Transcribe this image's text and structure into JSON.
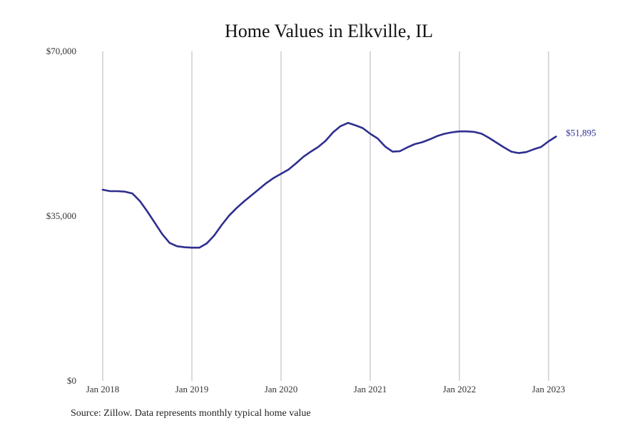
{
  "chart_data": {
    "type": "line",
    "title": "Home Values in Elkville, IL",
    "xlabel": "",
    "ylabel": "",
    "x_tick_labels": [
      "Jan 2018",
      "Jan 2019",
      "Jan 2020",
      "Jan 2021",
      "Jan 2022",
      "Jan 2023"
    ],
    "y_tick_labels": [
      "$0",
      "$35,000",
      "$70,000"
    ],
    "y_ticks": [
      0,
      35000,
      70000
    ],
    "ylim": [
      0,
      70000
    ],
    "xlim": [
      "2017-12",
      "2023-12"
    ],
    "grid": {
      "vertical": true,
      "horizontal": false
    },
    "line_color": "#2e2e8f",
    "series": [
      {
        "x": [
          "2018-01",
          "2018-02",
          "2018-03",
          "2018-04",
          "2018-05",
          "2018-06",
          "2018-07",
          "2018-08",
          "2018-09",
          "2018-10",
          "2018-11",
          "2018-12",
          "2019-01",
          "2019-02",
          "2019-03",
          "2019-04",
          "2019-05",
          "2019-06",
          "2019-07",
          "2019-08",
          "2019-09",
          "2019-10",
          "2019-11",
          "2019-12",
          "2020-01",
          "2020-02",
          "2020-03",
          "2020-04",
          "2020-05",
          "2020-06",
          "2020-07",
          "2020-08",
          "2020-09",
          "2020-10",
          "2020-11",
          "2020-12",
          "2021-01",
          "2021-02",
          "2021-03",
          "2021-04",
          "2021-05",
          "2021-06",
          "2021-07",
          "2021-08",
          "2021-09",
          "2021-10",
          "2021-11",
          "2021-12",
          "2022-01",
          "2022-02",
          "2022-03",
          "2022-04",
          "2022-05",
          "2022-06",
          "2022-07",
          "2022-08",
          "2022-09",
          "2022-10",
          "2022-11",
          "2022-12",
          "2023-01",
          "2023-02"
        ],
        "values": [
          40600,
          40300,
          40300,
          40200,
          39800,
          38200,
          36000,
          33600,
          31200,
          29300,
          28600,
          28400,
          28300,
          28300,
          29200,
          30900,
          33100,
          35100,
          36700,
          38100,
          39400,
          40700,
          42000,
          43100,
          44000,
          44900,
          46200,
          47600,
          48700,
          49700,
          51000,
          52800,
          54100,
          54800,
          54300,
          53700,
          52500,
          51500,
          49800,
          48700,
          48800,
          49600,
          50300,
          50700,
          51300,
          52000,
          52500,
          52800,
          53000,
          53000,
          52900,
          52500,
          51600,
          50600,
          49600,
          48700,
          48400,
          48600,
          49200,
          49700,
          50900,
          51895
        ]
      }
    ],
    "end_label": "$51,895"
  },
  "source": "Source: Zillow. Data represents monthly typical home value"
}
